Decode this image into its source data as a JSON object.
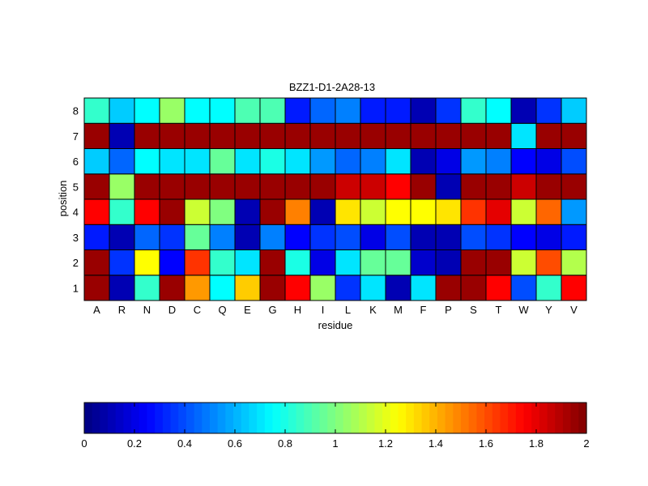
{
  "chart_data": {
    "type": "heatmap",
    "title": "BZZ1-D1-2A28-13",
    "xlabel": "residue",
    "ylabel": "position",
    "x_categories": [
      "A",
      "R",
      "N",
      "D",
      "C",
      "Q",
      "E",
      "G",
      "H",
      "I",
      "L",
      "K",
      "M",
      "F",
      "P",
      "S",
      "T",
      "W",
      "Y",
      "V"
    ],
    "y_categories": [
      "1",
      "2",
      "3",
      "4",
      "5",
      "6",
      "7",
      "8"
    ],
    "colormap": "jet",
    "clim": [
      0,
      2
    ],
    "colorbar": {
      "orientation": "horizontal",
      "placement": "bottom",
      "ticks": [
        0,
        0.2,
        0.4,
        0.6,
        0.8,
        1,
        1.2,
        1.4,
        1.6,
        1.8,
        2
      ],
      "tick_labels": [
        "0",
        "0.2",
        "0.4",
        "0.6",
        "0.8",
        "1",
        "1.2",
        "1.4",
        "1.6",
        "1.8",
        "2"
      ]
    },
    "values": [
      [
        1.95,
        0.1,
        0.85,
        1.95,
        1.45,
        0.75,
        1.35,
        1.95,
        1.75,
        1.05,
        0.35,
        0.7,
        0.1,
        0.7,
        1.95,
        1.95,
        1.75,
        0.4,
        0.85,
        1.75
      ],
      [
        1.95,
        0.35,
        1.25,
        0.25,
        1.65,
        0.85,
        0.7,
        1.95,
        0.8,
        0.2,
        0.7,
        0.95,
        0.95,
        0.15,
        0.1,
        1.95,
        1.95,
        1.15,
        1.6,
        1.1
      ],
      [
        0.3,
        0.1,
        0.45,
        0.35,
        0.95,
        0.5,
        0.1,
        0.5,
        0.25,
        0.35,
        0.4,
        0.2,
        0.4,
        0.1,
        0.1,
        0.4,
        0.35,
        0.25,
        0.2,
        0.3
      ],
      [
        1.75,
        0.85,
        1.75,
        1.95,
        1.15,
        1.0,
        0.1,
        1.95,
        1.5,
        0.1,
        1.3,
        1.15,
        1.25,
        1.25,
        1.3,
        1.65,
        1.8,
        1.15,
        1.55,
        0.55
      ],
      [
        1.95,
        1.05,
        1.95,
        1.95,
        1.95,
        1.95,
        1.95,
        1.95,
        1.95,
        1.95,
        1.85,
        1.85,
        1.75,
        1.95,
        0.1,
        1.95,
        1.95,
        1.85,
        1.95,
        1.95
      ],
      [
        0.65,
        0.45,
        0.75,
        0.7,
        0.7,
        0.95,
        0.7,
        0.8,
        0.7,
        0.55,
        0.45,
        0.5,
        0.7,
        0.1,
        0.2,
        0.55,
        0.5,
        0.25,
        0.2,
        0.4
      ],
      [
        1.95,
        0.1,
        1.95,
        1.95,
        1.95,
        1.95,
        1.95,
        1.95,
        1.95,
        1.95,
        1.95,
        1.95,
        1.95,
        1.95,
        1.95,
        1.95,
        1.95,
        0.7,
        1.95,
        1.95
      ],
      [
        0.85,
        0.65,
        0.75,
        1.05,
        0.75,
        0.75,
        0.9,
        0.9,
        0.3,
        0.45,
        0.5,
        0.3,
        0.3,
        0.1,
        0.35,
        0.85,
        0.75,
        0.1,
        0.35,
        0.65
      ]
    ]
  }
}
